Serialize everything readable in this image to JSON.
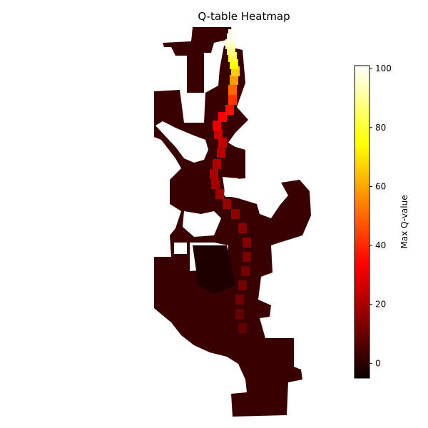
{
  "chart_data": {
    "type": "heatmap",
    "title": "Q-table Heatmap",
    "colormap": "hot",
    "axes_visible": false,
    "grid": false,
    "background_color": "#ffffff",
    "colorbar": {
      "label": "Max Q-value",
      "range": [
        -5,
        101
      ],
      "ticks": [
        0,
        20,
        40,
        60,
        80,
        100
      ],
      "tick_labels": [
        "0",
        "20",
        "40",
        "60",
        "80",
        "100"
      ],
      "placement": "right"
    },
    "cells_approximate": {
      "description": "Dark red region (values near 0) with a bright path (values 10 to 100) rising to the top, maximum near 100 at the top of the path.",
      "min_value": -3,
      "max_value": 100
    }
  }
}
